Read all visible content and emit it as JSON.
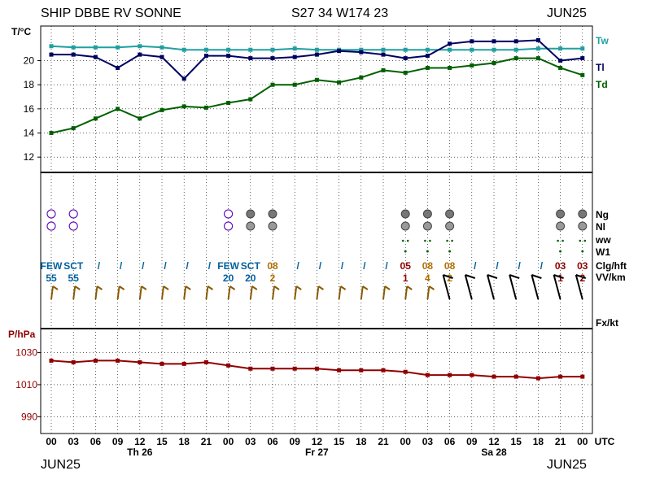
{
  "header": {
    "station": "SHIP DBBE RV SONNE",
    "position": "S27 34 W174 23",
    "month_right": "JUN25"
  },
  "footer": {
    "month_left": "JUN25",
    "month_right": "JUN25"
  },
  "colors": {
    "tw": "#20a0a0",
    "tl": "#000060",
    "td": "#006000",
    "pressure": "#900000",
    "wind": "#8b5a00",
    "cloud": "#0060a0"
  },
  "chart_data": [
    {
      "type": "line",
      "title": "",
      "ylabel": "T/°C",
      "ylim": [
        11,
        22.6
      ],
      "yticks": [
        12,
        14,
        16,
        18,
        20
      ],
      "x": [
        "00",
        "03",
        "06",
        "09",
        "12",
        "15",
        "18",
        "21",
        "00",
        "03",
        "06",
        "09",
        "12",
        "15",
        "18",
        "21",
        "00",
        "03",
        "06",
        "09",
        "12",
        "15",
        "18",
        "21",
        "00"
      ],
      "series": [
        {
          "name": "Tw",
          "values": [
            21.2,
            21.1,
            21.1,
            21.1,
            21.2,
            21.1,
            20.9,
            20.9,
            20.9,
            20.9,
            20.9,
            21.0,
            20.9,
            20.9,
            20.9,
            20.9,
            20.9,
            20.9,
            20.9,
            20.9,
            20.9,
            20.9,
            21.0,
            21.0,
            21.0
          ]
        },
        {
          "name": "Tl",
          "values": [
            20.5,
            20.5,
            20.3,
            19.4,
            20.5,
            20.3,
            18.5,
            20.4,
            20.4,
            20.2,
            20.2,
            20.3,
            20.5,
            20.8,
            20.7,
            20.5,
            20.2,
            20.4,
            21.4,
            21.6,
            21.6,
            21.6,
            21.7,
            20.0,
            20.2
          ]
        },
        {
          "name": "Td",
          "values": [
            14.0,
            14.4,
            15.2,
            16.0,
            15.2,
            15.9,
            16.2,
            16.1,
            16.5,
            16.8,
            18.0,
            18.0,
            18.4,
            18.2,
            18.6,
            19.2,
            19.0,
            19.4,
            19.4,
            19.6,
            19.8,
            20.2,
            20.2,
            19.4,
            18.8
          ]
        }
      ]
    },
    {
      "type": "line",
      "title": "",
      "ylabel": "P/hPa",
      "ylim": [
        980,
        1043
      ],
      "yticks": [
        990,
        1010,
        1030
      ],
      "x": [
        "00",
        "03",
        "06",
        "09",
        "12",
        "15",
        "18",
        "21",
        "00",
        "03",
        "06",
        "09",
        "12",
        "15",
        "18",
        "21",
        "00",
        "03",
        "06",
        "09",
        "12",
        "15",
        "18",
        "21",
        "00"
      ],
      "series": [
        {
          "name": "P",
          "values": [
            1025,
            1024,
            1025,
            1025,
            1024,
            1023,
            1023,
            1024,
            1022,
            1020,
            1020,
            1020,
            1020,
            1019,
            1019,
            1019,
            1018,
            1016,
            1016,
            1016,
            1015,
            1015,
            1014,
            1015,
            1015
          ]
        }
      ]
    }
  ],
  "obs_rows": {
    "ng_label": "Ng",
    "nl_label": "Nl",
    "ww_label": "ww",
    "w1_label": "W1",
    "clg_label": "Clg/hft",
    "vv_label": "VV/km",
    "fx_label": "Fx/kt",
    "clg": [
      "FEW",
      "SCT",
      "/",
      "/",
      "/",
      "/",
      "/",
      "/",
      "FEW",
      "SCT",
      "08",
      "/",
      "/",
      "/",
      "/",
      "/",
      "05",
      "08",
      "08",
      "/",
      "/",
      "/",
      "/",
      "03",
      "03"
    ],
    "hft": [
      "55",
      "55",
      "",
      "",
      "",
      "",
      "",
      "",
      "20",
      "20",
      "2",
      "",
      "",
      "",
      "",
      "",
      "1",
      "4",
      "2",
      "",
      "",
      "",
      "",
      "1",
      "2"
    ]
  },
  "time_axis": {
    "hours": [
      "00",
      "03",
      "06",
      "09",
      "12",
      "15",
      "18",
      "21",
      "00",
      "03",
      "06",
      "09",
      "12",
      "15",
      "18",
      "21",
      "00",
      "03",
      "06",
      "09",
      "12",
      "15",
      "18",
      "21",
      "00"
    ],
    "utc": "UTC",
    "days": [
      "Th 26",
      "Fr 27",
      "Sa 28"
    ]
  }
}
